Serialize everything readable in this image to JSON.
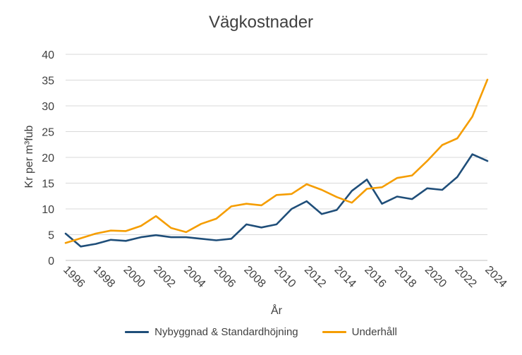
{
  "chart_data": {
    "type": "line",
    "title": "Vägkostnader",
    "xlabel": "År",
    "ylabel": "Kr per m³fub",
    "ylim": [
      0,
      40
    ],
    "yticks": [
      "0",
      "5",
      "10",
      "15",
      "20",
      "25",
      "30",
      "35",
      "40"
    ],
    "xticks": [
      "1996",
      "1998",
      "2000",
      "2002",
      "2004",
      "2006",
      "2008",
      "2010",
      "2012",
      "2014",
      "2016",
      "2018",
      "2020",
      "2022",
      "2024"
    ],
    "x": [
      1996,
      1997,
      1998,
      1999,
      2000,
      2001,
      2002,
      2003,
      2004,
      2005,
      2006,
      2007,
      2008,
      2009,
      2010,
      2011,
      2012,
      2013,
      2014,
      2015,
      2016,
      2017,
      2018,
      2019,
      2020,
      2021,
      2022,
      2023,
      2024
    ],
    "series": [
      {
        "name": "Nybyggnad & Standardhöjning",
        "color": "#1f4e79",
        "values": [
          5.2,
          2.7,
          3.2,
          4.0,
          3.8,
          4.5,
          4.9,
          4.5,
          4.5,
          4.2,
          3.9,
          4.2,
          7.0,
          6.4,
          7.0,
          10.0,
          11.5,
          9.0,
          9.8,
          13.5,
          15.7,
          11.0,
          12.4,
          11.9,
          14.0,
          13.7,
          16.2,
          20.6,
          19.3
        ]
      },
      {
        "name": "Underhåll",
        "color": "#f59d00",
        "values": [
          3.4,
          4.3,
          5.2,
          5.8,
          5.7,
          6.7,
          8.6,
          6.3,
          5.5,
          7.1,
          8.1,
          10.5,
          11.0,
          10.7,
          12.7,
          12.9,
          14.8,
          13.7,
          12.3,
          11.2,
          13.9,
          14.2,
          16.0,
          16.5,
          19.3,
          22.4,
          23.7,
          27.9,
          35.1
        ]
      }
    ],
    "grid": true,
    "legend": "bottom"
  }
}
